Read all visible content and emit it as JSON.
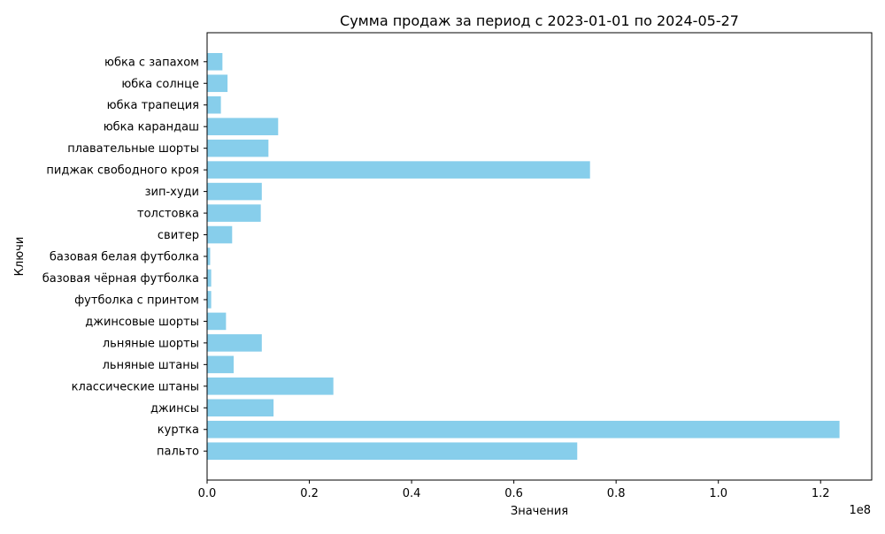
{
  "chart_data": {
    "type": "bar",
    "orientation": "horizontal",
    "title": "Сумма продаж за период с 2023-01-01 по 2024-05-27",
    "xlabel": "Значения",
    "ylabel": "Ключи",
    "x_offset_label": "1e8",
    "xlim": [
      0,
      1.3
    ],
    "x_unit_multiplier": 100000000,
    "x_ticks": [
      0.0,
      0.2,
      0.4,
      0.6,
      0.8,
      1.0,
      1.2
    ],
    "x_tick_labels": [
      "0.0",
      "0.2",
      "0.4",
      "0.6",
      "0.8",
      "1.0",
      "1.2"
    ],
    "grid": false,
    "bar_color": "#87ceeb",
    "categories": [
      "пальто",
      "куртка",
      "джинсы",
      "классические штаны",
      "льняные штаны",
      "льняные шорты",
      "джинсовые шорты",
      "футболка с принтом",
      "базовая чёрная футболка",
      "базовая белая футболка",
      "свитер",
      "толстовка",
      "зип-худи",
      "пиджак свободного кроя",
      "плавательные шорты",
      "юбка карандаш",
      "юбка трапеция",
      "юбка солнце",
      "юбка с запахом"
    ],
    "values": [
      0.724,
      1.237,
      0.13,
      0.247,
      0.052,
      0.107,
      0.037,
      0.008,
      0.008,
      0.006,
      0.049,
      0.105,
      0.107,
      0.749,
      0.12,
      0.139,
      0.027,
      0.04,
      0.03
    ]
  }
}
